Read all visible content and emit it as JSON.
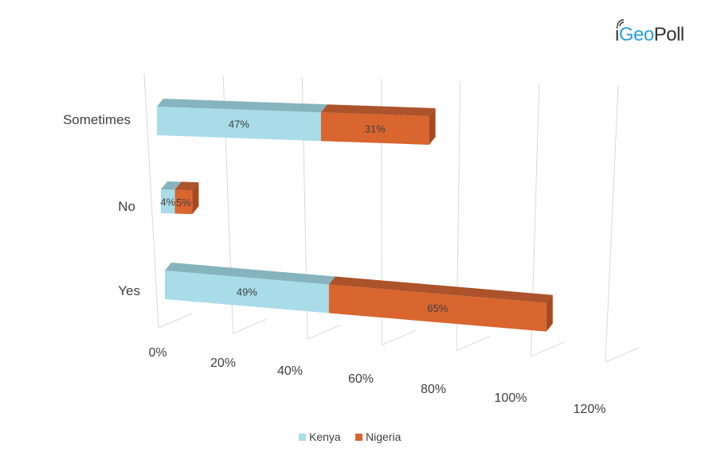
{
  "brand": {
    "logo_text": "iGeoPoll"
  },
  "colors": {
    "kenya": "#a8dce9",
    "kenya_top": "#7fb0ba",
    "nigeria": "#d9652f",
    "nigeria_top": "#a84a20",
    "nigeria_side": "#a84a20",
    "kenya_side": "#6f9aa4",
    "grid": "#d9d9d9",
    "text": "#404040"
  },
  "chart_data": {
    "type": "bar",
    "orientation": "horizontal",
    "stacked": true,
    "three_d": true,
    "categories": [
      "Sometimes",
      "No",
      "Yes"
    ],
    "series": [
      {
        "name": "Kenya",
        "values": [
          47,
          4,
          49
        ],
        "labels": [
          "47%",
          "4%",
          "49%"
        ]
      },
      {
        "name": "Nigeria",
        "values": [
          31,
          5,
          65
        ],
        "labels": [
          "31%",
          "5%",
          "65%"
        ]
      }
    ],
    "xlim": [
      0,
      120
    ],
    "xticks": [
      "0%",
      "20%",
      "40%",
      "60%",
      "80%",
      "100%",
      "120%"
    ],
    "grid": true,
    "legend": "bottom"
  }
}
